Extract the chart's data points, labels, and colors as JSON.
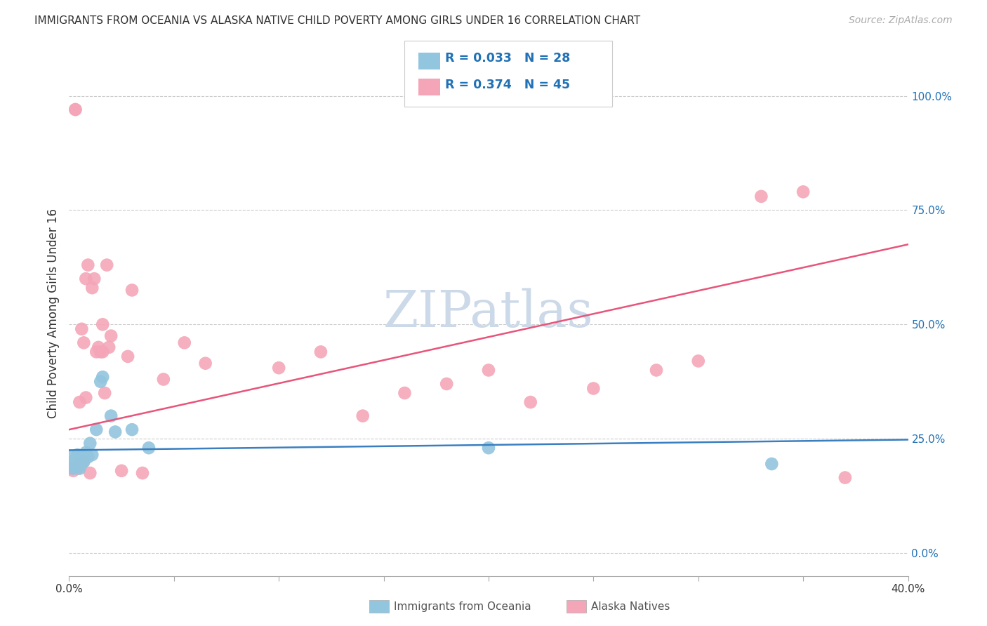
{
  "title": "IMMIGRANTS FROM OCEANIA VS ALASKA NATIVE CHILD POVERTY AMONG GIRLS UNDER 16 CORRELATION CHART",
  "source": "Source: ZipAtlas.com",
  "ylabel": "Child Poverty Among Girls Under 16",
  "xlim": [
    0.0,
    0.4
  ],
  "ylim": [
    -0.05,
    1.1
  ],
  "xticks": [
    0.0,
    0.05,
    0.1,
    0.15,
    0.2,
    0.25,
    0.3,
    0.35,
    0.4
  ],
  "xticklabels": [
    "0.0%",
    "",
    "",
    "",
    "",
    "",
    "",
    "",
    "40.0%"
  ],
  "ytick_positions": [
    0.0,
    0.25,
    0.5,
    0.75,
    1.0
  ],
  "yticklabels_right": [
    "0.0%",
    "25.0%",
    "50.0%",
    "75.0%",
    "100.0%"
  ],
  "blue_color": "#92c5de",
  "pink_color": "#f4a6b8",
  "blue_line_color": "#3a7fc1",
  "pink_line_color": "#e8547a",
  "legend_text_color": "#2171b5",
  "grid_color": "#cccccc",
  "watermark_color": "#ccd9e8",
  "blue_R": 0.033,
  "blue_N": 28,
  "pink_R": 0.374,
  "pink_N": 45,
  "pink_line_x0": 0.0,
  "pink_line_y0": 0.27,
  "pink_line_x1": 0.4,
  "pink_line_y1": 0.675,
  "blue_line_x0": 0.0,
  "blue_line_y0": 0.225,
  "blue_line_x1": 0.4,
  "blue_line_y1": 0.248,
  "blue_scatter_x": [
    0.001,
    0.001,
    0.002,
    0.002,
    0.003,
    0.003,
    0.004,
    0.004,
    0.005,
    0.005,
    0.005,
    0.006,
    0.006,
    0.007,
    0.007,
    0.008,
    0.009,
    0.01,
    0.011,
    0.013,
    0.015,
    0.016,
    0.02,
    0.022,
    0.03,
    0.038,
    0.2,
    0.335
  ],
  "blue_scatter_y": [
    0.195,
    0.21,
    0.185,
    0.2,
    0.19,
    0.205,
    0.2,
    0.215,
    0.185,
    0.195,
    0.21,
    0.195,
    0.205,
    0.2,
    0.215,
    0.22,
    0.21,
    0.24,
    0.215,
    0.27,
    0.375,
    0.385,
    0.3,
    0.265,
    0.27,
    0.23,
    0.23,
    0.195
  ],
  "pink_scatter_x": [
    0.001,
    0.002,
    0.003,
    0.003,
    0.004,
    0.005,
    0.005,
    0.006,
    0.007,
    0.007,
    0.008,
    0.008,
    0.009,
    0.01,
    0.011,
    0.012,
    0.013,
    0.014,
    0.015,
    0.016,
    0.016,
    0.017,
    0.018,
    0.019,
    0.02,
    0.025,
    0.028,
    0.03,
    0.035,
    0.045,
    0.055,
    0.065,
    0.1,
    0.12,
    0.14,
    0.16,
    0.18,
    0.2,
    0.22,
    0.25,
    0.28,
    0.3,
    0.33,
    0.35,
    0.37
  ],
  "pink_scatter_y": [
    0.185,
    0.18,
    0.97,
    0.97,
    0.185,
    0.195,
    0.33,
    0.49,
    0.2,
    0.46,
    0.34,
    0.6,
    0.63,
    0.175,
    0.58,
    0.6,
    0.44,
    0.45,
    0.44,
    0.44,
    0.5,
    0.35,
    0.63,
    0.45,
    0.475,
    0.18,
    0.43,
    0.575,
    0.175,
    0.38,
    0.46,
    0.415,
    0.405,
    0.44,
    0.3,
    0.35,
    0.37,
    0.4,
    0.33,
    0.36,
    0.4,
    0.42,
    0.78,
    0.79,
    0.165
  ],
  "background_color": "#ffffff"
}
